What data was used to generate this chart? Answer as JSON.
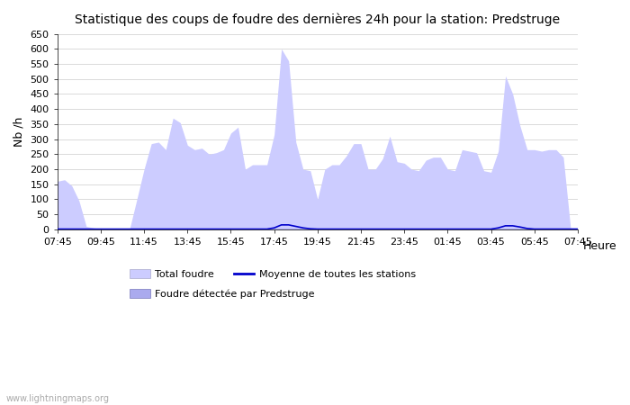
{
  "title": "Statistique des coups de foudre des dernières 24h pour la station: Predstruge",
  "ylabel": "Nb /h",
  "xlabel": "Heure",
  "watermark": "www.lightningmaps.org",
  "ylim": [
    0,
    650
  ],
  "yticks": [
    0,
    50,
    100,
    150,
    200,
    250,
    300,
    350,
    400,
    450,
    500,
    550,
    600,
    650
  ],
  "xtick_labels": [
    "07:45",
    "09:45",
    "11:45",
    "13:45",
    "15:45",
    "17:45",
    "19:45",
    "21:45",
    "23:45",
    "01:45",
    "03:45",
    "05:45",
    "07:45"
  ],
  "color_total": "#ccccff",
  "color_detected": "#aaaaee",
  "color_mean": "#0000cc",
  "bg_color": "#ffffff",
  "grid_color": "#cccccc",
  "total_foudre": [
    160,
    165,
    145,
    95,
    10,
    5,
    2,
    2,
    2,
    2,
    2,
    100,
    200,
    285,
    290,
    265,
    370,
    355,
    280,
    265,
    270,
    250,
    255,
    265,
    320,
    340,
    200,
    215,
    215,
    215,
    315,
    600,
    560,
    290,
    200,
    195,
    100,
    200,
    215,
    215,
    245,
    285,
    285,
    200,
    200,
    235,
    310,
    225,
    220,
    200,
    195,
    230,
    240,
    240,
    200,
    195,
    265,
    260,
    255,
    195,
    190,
    260,
    510,
    450,
    345,
    265,
    265,
    260,
    265,
    265,
    240,
    5,
    5
  ],
  "detected_foudre": [
    2,
    2,
    2,
    2,
    2,
    2,
    2,
    2,
    2,
    2,
    2,
    2,
    2,
    2,
    2,
    2,
    2,
    2,
    2,
    2,
    2,
    2,
    2,
    2,
    2,
    2,
    2,
    2,
    2,
    2,
    2,
    2,
    2,
    2,
    2,
    2,
    2,
    2,
    2,
    2,
    2,
    2,
    2,
    2,
    2,
    2,
    2,
    2,
    2,
    2,
    2,
    2,
    2,
    2,
    2,
    2,
    2,
    2,
    2,
    2,
    2,
    2,
    2,
    2,
    2,
    2,
    2,
    2,
    2,
    2,
    2,
    2,
    2
  ],
  "mean_line": [
    1,
    1,
    1,
    1,
    1,
    1,
    1,
    1,
    1,
    1,
    1,
    1,
    1,
    1,
    1,
    1,
    1,
    1,
    1,
    1,
    1,
    1,
    1,
    1,
    1,
    1,
    1,
    1,
    1,
    1,
    5,
    15,
    15,
    10,
    5,
    2,
    1,
    1,
    1,
    1,
    1,
    1,
    1,
    1,
    1,
    1,
    1,
    1,
    1,
    1,
    1,
    1,
    1,
    1,
    1,
    1,
    1,
    1,
    1,
    1,
    1,
    5,
    12,
    12,
    8,
    3,
    1,
    1,
    1,
    1,
    1,
    1,
    1
  ]
}
